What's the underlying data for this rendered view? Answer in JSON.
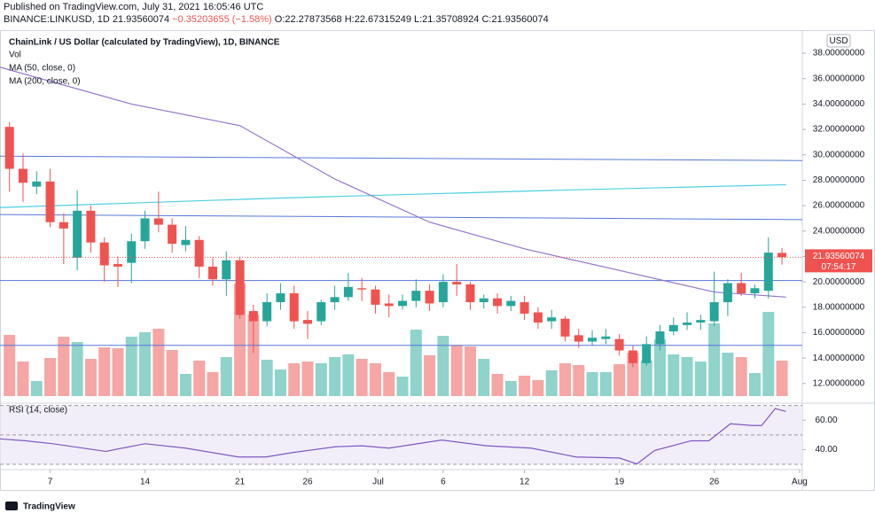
{
  "header": {
    "published": "Published on TradingView.com, July 31, 2021 16:05:46 UTC",
    "symbol": "BINANCE:LINKUSD, 1D",
    "last": "21.93560074",
    "change": "−0.35203655 (−1.58%)",
    "ohlc": [
      "O:22.27873568",
      "H:22.67315249",
      "L:21.35708924",
      "C:21.93560074"
    ]
  },
  "chart_data": {
    "type": "candlestick",
    "title": "ChainLink / US Dollar (calculated by TradingView), 1D, BINANCE",
    "legend": [
      "Vol",
      "MA (50, close, 0)",
      "MA (200, close, 0)"
    ],
    "currency": "USD",
    "open": [
      32.2,
      28.9,
      27.5,
      27.9,
      24.7,
      21.9,
      25.6,
      23.1,
      21.4,
      21.5,
      23.2,
      25.0,
      24.5,
      22.9,
      23.3,
      21.2,
      20.2,
      21.7,
      17.7,
      16.9,
      18.4,
      19.1,
      17.0,
      16.9,
      18.4,
      18.8,
      19.5,
      19.4,
      18.3,
      18.1,
      18.5,
      19.3,
      18.4,
      20.0,
      19.8,
      18.4,
      18.7,
      18.1,
      18.4,
      17.6,
      16.9,
      17.1,
      15.8,
      15.3,
      15.5,
      15.5,
      14.6,
      13.6,
      15.1,
      16.1,
      16.6,
      16.8,
      16.9,
      18.4,
      19.9,
      19.1,
      19.3,
      22.28
    ],
    "high": [
      32.6,
      30.1,
      28.7,
      28.9,
      25.4,
      27.2,
      26.0,
      23.5,
      22.0,
      23.8,
      25.6,
      27.1,
      25.0,
      24.4,
      23.6,
      21.9,
      22.4,
      22.0,
      18.2,
      19.1,
      19.9,
      19.7,
      17.7,
      18.6,
      19.7,
      20.7,
      20.3,
      19.7,
      19.0,
      19.0,
      20.2,
      19.8,
      20.6,
      21.4,
      20.0,
      19.0,
      19.1,
      18.9,
      18.9,
      18.0,
      17.8,
      17.3,
      16.3,
      16.2,
      16.3,
      15.9,
      15.0,
      15.7,
      16.6,
      17.2,
      17.6,
      17.4,
      20.8,
      20.2,
      20.7,
      19.8,
      23.5,
      22.67
    ],
    "low": [
      27.1,
      26.3,
      26.9,
      24.3,
      21.4,
      20.9,
      22.3,
      20.0,
      19.6,
      19.9,
      22.6,
      23.9,
      22.3,
      22.4,
      20.3,
      19.7,
      18.9,
      17.1,
      14.4,
      16.5,
      17.8,
      16.3,
      15.5,
      16.6,
      17.8,
      18.5,
      18.5,
      17.5,
      17.2,
      17.8,
      18.0,
      17.7,
      18.0,
      18.9,
      17.8,
      17.9,
      17.5,
      17.7,
      17.0,
      16.3,
      16.3,
      15.3,
      14.8,
      15.0,
      15.1,
      14.2,
      13.3,
      13.4,
      14.6,
      15.8,
      16.2,
      16.2,
      16.5,
      17.3,
      18.9,
      18.7,
      18.7,
      21.36
    ],
    "close": [
      28.9,
      27.8,
      27.9,
      24.7,
      24.2,
      25.6,
      23.1,
      21.3,
      21.2,
      23.2,
      25.0,
      24.5,
      23.0,
      23.3,
      21.2,
      20.2,
      21.7,
      17.4,
      16.9,
      18.4,
      19.1,
      16.9,
      16.7,
      18.4,
      18.8,
      19.6,
      19.4,
      18.2,
      18.1,
      18.5,
      19.3,
      18.3,
      20.0,
      19.8,
      18.4,
      18.7,
      18.1,
      18.5,
      17.5,
      16.8,
      17.2,
      15.7,
      15.3,
      15.6,
      15.7,
      14.6,
      13.6,
      15.1,
      16.1,
      16.6,
      16.8,
      17.0,
      18.4,
      19.9,
      19.1,
      19.5,
      22.3,
      21.94
    ],
    "volume": [
      69,
      39,
      17,
      43,
      67,
      61,
      42,
      55,
      54,
      67,
      72,
      76,
      52,
      25,
      40,
      27,
      44,
      127,
      92,
      41,
      30,
      37,
      39,
      37,
      44,
      47,
      42,
      37,
      27,
      22,
      75,
      46,
      68,
      57,
      56,
      42,
      25,
      17,
      23,
      18,
      29,
      37,
      35,
      27,
      27,
      36,
      49,
      40,
      64,
      47,
      44,
      39,
      82,
      49,
      44,
      26,
      95,
      40
    ],
    "ma50": {
      "x": [
        -0.7,
        9,
        17,
        24,
        31,
        38,
        45,
        52,
        57.3
      ],
      "values": [
        36.9,
        34.0,
        32.3,
        28.1,
        24.7,
        22.6,
        20.9,
        19.2,
        18.8
      ]
    },
    "ma200": {
      "x": [
        -0.7,
        20,
        40,
        57.3
      ],
      "values": [
        25.85,
        26.6,
        27.2,
        27.65
      ]
    },
    "hlines": [
      [
        29.9,
        29.55
      ],
      [
        25.3,
        24.9
      ],
      [
        20.1,
        20.1
      ],
      [
        15.0,
        15.0
      ]
    ],
    "last_price": {
      "value": 21.9356,
      "label": "21.93560074",
      "countdown": "07:54:17"
    },
    "ylim": [
      10.8,
      39.4
    ],
    "yticks": [
      {
        "value": 12,
        "label": "12.00000000"
      },
      {
        "value": 14,
        "label": "14.00000000"
      },
      {
        "value": 16,
        "label": "16.00000000"
      },
      {
        "value": 18,
        "label": "18.00000000"
      },
      {
        "value": 20,
        "label": "20.00000000"
      },
      {
        "value": 22,
        "label": "22.00000000"
      },
      {
        "value": 24,
        "label": "24.00000000"
      },
      {
        "value": 26,
        "label": "26.00000000"
      },
      {
        "value": 28,
        "label": "28.00000000"
      },
      {
        "value": 30,
        "label": "30.00000000"
      },
      {
        "value": 32,
        "label": "32.00000000"
      },
      {
        "value": 34,
        "label": "34.00000000"
      },
      {
        "value": 36,
        "label": "36.00000000"
      },
      {
        "value": 38,
        "label": "38.00000000"
      }
    ],
    "xlim": [
      -0.7,
      58.5
    ],
    "xticks": [
      {
        "value": 3,
        "label": "7"
      },
      {
        "value": 10,
        "label": "14"
      },
      {
        "value": 17,
        "label": "21"
      },
      {
        "value": 22,
        "label": "26"
      },
      {
        "value": 27.2,
        "label": "Jul"
      },
      {
        "value": 32,
        "label": "6"
      },
      {
        "value": 38,
        "label": "12"
      },
      {
        "value": 45,
        "label": "19"
      },
      {
        "value": 52,
        "label": "26"
      },
      {
        "value": 58.3,
        "label": "Aug"
      }
    ],
    "rsi": {
      "title": "RSI (14, close)",
      "x": [
        -0.7,
        1.2,
        3.2,
        7.1,
        10,
        13,
        16.9,
        18.9,
        20.9,
        24.1,
        26,
        28,
        31.9,
        35.2,
        38.5,
        41.8,
        45,
        46.3,
        47.6,
        50.3,
        51.6,
        53.2,
        54.8,
        55.5,
        56.5,
        57.3
      ],
      "values": [
        47.3,
        46,
        44,
        38.8,
        44,
        41,
        35,
        35,
        38,
        42,
        42.6,
        41,
        46.5,
        42.6,
        41,
        35,
        34.3,
        30.3,
        39.4,
        46,
        46,
        57.6,
        56.4,
        56.4,
        67.9,
        66
      ],
      "ylim": [
        27,
        71
      ],
      "yticks": [
        {
          "value": 40,
          "label": "40.00"
        },
        {
          "value": 60,
          "label": "60.00"
        }
      ],
      "bands": [
        70,
        50,
        30
      ]
    },
    "colors": {
      "up": "#26a69a",
      "down": "#ef5350",
      "vol_up": "#8fd3cb",
      "vol_down": "#f5a6a5",
      "ma50": "#9575cd",
      "ma200": "#4dd0e1",
      "hline": "#5677d9",
      "rsi": "#7e57c2"
    },
    "brand": "TradingView"
  }
}
